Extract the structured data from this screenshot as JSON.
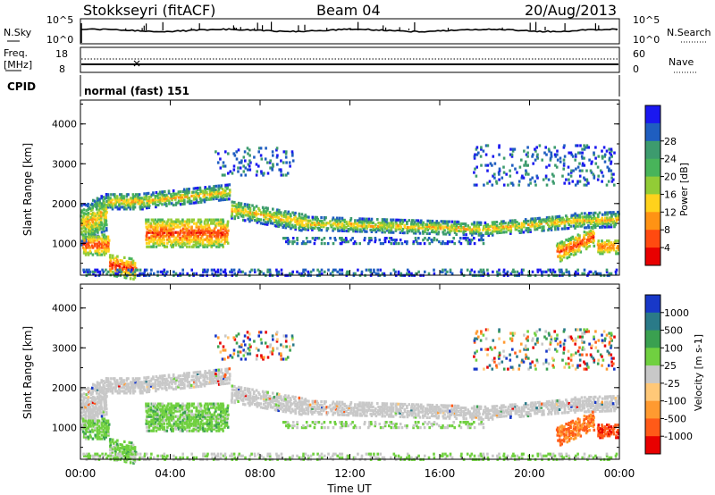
{
  "header": {
    "station": "Stokkseyri (fitACF)",
    "beam": "Beam 04",
    "date": "20/Aug/2013"
  },
  "noise_panel": {
    "left_label": "N.Sky",
    "right_label": "N.Search",
    "left_ticks": [
      "10^5",
      "10^0"
    ],
    "right_ticks": [
      "10^5",
      "10^0"
    ]
  },
  "freq_panel": {
    "left_label_1": "Freq.",
    "left_label_2": "[MHz]",
    "right_label": "Nave",
    "left_ticks": [
      "18",
      "8"
    ],
    "right_ticks": [
      "60",
      "0"
    ]
  },
  "cpid_panel": {
    "label": "CPID",
    "text": "normal (fast) 151"
  },
  "chart_data": [
    {
      "type": "heatmap",
      "name": "power",
      "ylabel": "Slant Range [km]",
      "ylim": [
        200,
        4600
      ],
      "yticks": [
        "1000",
        "2000",
        "3000",
        "4000"
      ],
      "colorbar": {
        "label": "Power [dB]",
        "ticks": [
          "4",
          "8",
          "12",
          "16",
          "20",
          "24",
          "28"
        ],
        "colors": [
          "#1a18f0",
          "#1f5ec0",
          "#3d9b6e",
          "#48b45a",
          "#92cc36",
          "#ffd21c",
          "#ff9314",
          "#ff4a10",
          "#e80000"
        ]
      }
    },
    {
      "type": "heatmap",
      "name": "velocity",
      "ylabel": "Slant Range [km]",
      "ylim": [
        200,
        4600
      ],
      "yticks": [
        "1000",
        "2000",
        "3000",
        "4000"
      ],
      "colorbar": {
        "label": "Velocity [m s-1]",
        "ticks": [
          "1000",
          "500",
          "100",
          "25",
          "-25",
          "-100",
          "-500",
          "-1000"
        ],
        "colors": [
          "#1838c8",
          "#2a7a88",
          "#3aa050",
          "#70d040",
          "#c8c8c8",
          "#ffc878",
          "#ff9a30",
          "#ff5a18",
          "#e80000"
        ]
      }
    }
  ],
  "time_axis": {
    "label": "Time UT",
    "ticks": [
      "00:00",
      "04:00",
      "08:00",
      "12:00",
      "16:00",
      "20:00",
      "00:00"
    ]
  }
}
